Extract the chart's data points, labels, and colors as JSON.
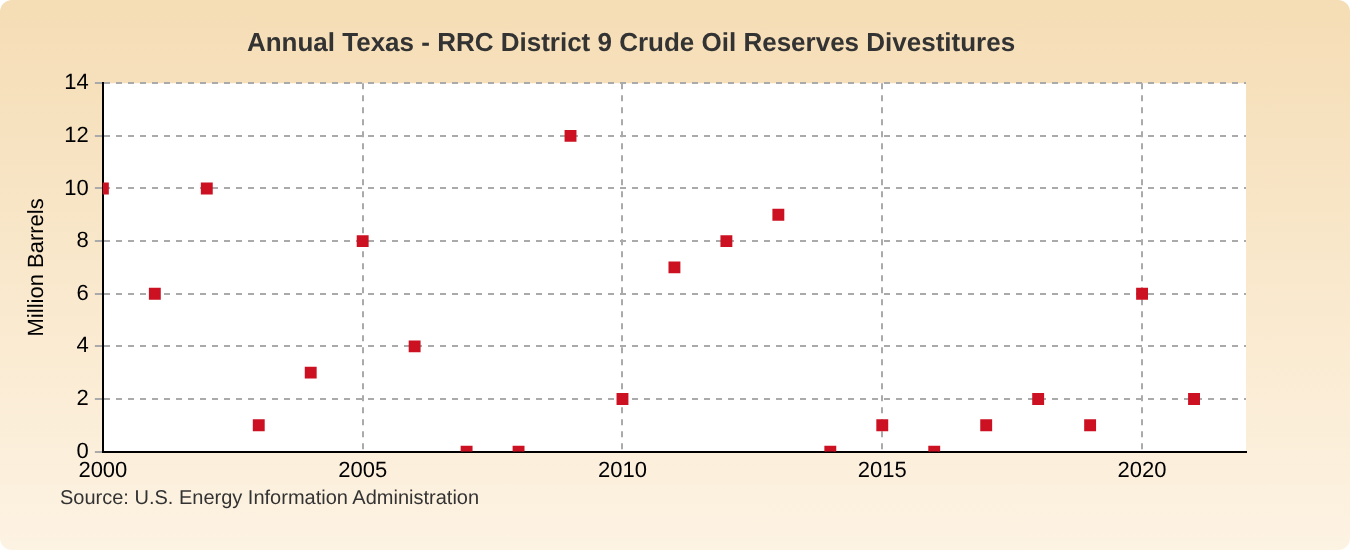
{
  "chart_data": {
    "type": "scatter",
    "title": "Annual Texas - RRC District 9 Crude Oil Reserves Divestitures",
    "ylabel": "Million Barrels",
    "x": [
      2000,
      2001,
      2002,
      2003,
      2004,
      2005,
      2006,
      2007,
      2008,
      2009,
      2010,
      2011,
      2012,
      2013,
      2014,
      2015,
      2016,
      2017,
      2018,
      2019,
      2020,
      2021
    ],
    "series": [
      {
        "color": "#cc1122",
        "values": [
          10,
          6,
          10,
          1,
          3,
          8,
          4,
          0,
          0,
          12,
          2,
          7,
          8,
          9,
          0,
          1,
          0,
          1,
          2,
          1,
          6,
          2
        ]
      }
    ],
    "xlim": [
      2000,
      2022
    ],
    "xticks": [
      2000,
      2005,
      2010,
      2015,
      2020
    ],
    "ylim": [
      0,
      14
    ],
    "yticks": [
      0,
      2,
      4,
      6,
      8,
      10,
      12,
      14
    ],
    "grid": true,
    "legend": false,
    "marker": "square",
    "annotations": [
      "Source: U.S. Energy Information Administration"
    ]
  }
}
